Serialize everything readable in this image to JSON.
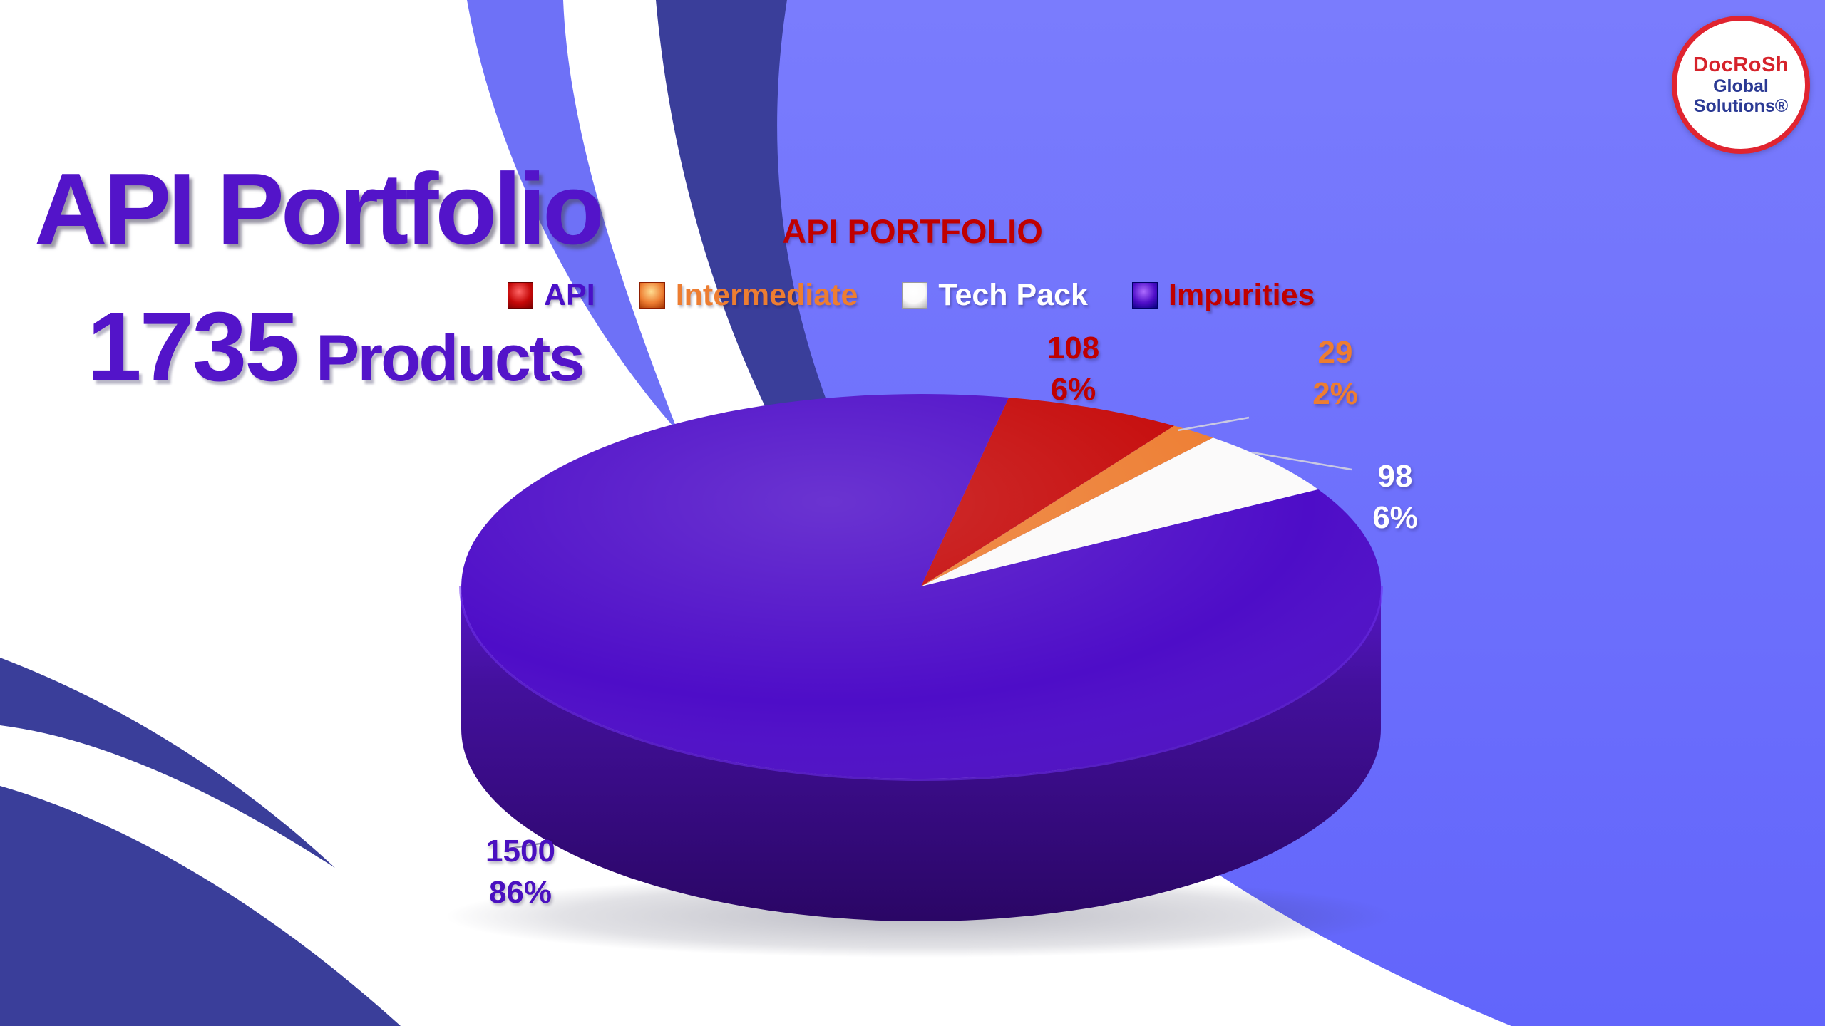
{
  "slide": {
    "title": "API Portfolio",
    "subtitle_number": "1735",
    "subtitle_word": "Products"
  },
  "logo": {
    "line1": "DocRoSh",
    "line2": "Global",
    "line3": "Solutions®"
  },
  "chart_data": {
    "type": "pie",
    "style": "3d",
    "title": "API PORTFOLIO",
    "categories": [
      "API",
      "Intermediate",
      "Tech Pack",
      "Impurities"
    ],
    "values": [
      108,
      29,
      98,
      1500
    ],
    "total_products": 1735,
    "percent_labels": [
      "6%",
      "2%",
      "6%",
      "86%"
    ],
    "slice_colors": [
      "#c50808",
      "#ed7d31",
      "#fbfafa",
      "#4e0dc8"
    ],
    "legend_text_colors": [
      "#4a10c8",
      "#ed7d31",
      "#ffffff",
      "#c00000"
    ],
    "data_label_colors": [
      "#c00000",
      "#ed7d31",
      "#ffffff",
      "#4a10c0"
    ],
    "legend_position": "top",
    "start_angle_deg": 11
  },
  "background": {
    "field_blue_top": "#7678fc",
    "field_blue_bottom": "#6366fb",
    "swoosh_navy": "#3a3e9a",
    "swoosh_light": "#6e71f7",
    "base": "#ffffff"
  }
}
